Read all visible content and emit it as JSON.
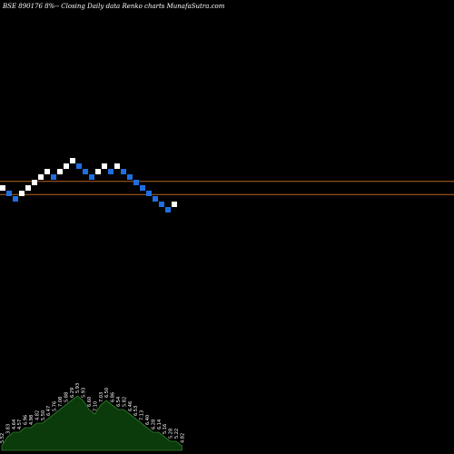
{
  "chart_data": {
    "type": "renko",
    "title": "BSE 890176  8%--  Closing Daily data  Renko  charts MunafaSutra.com",
    "colors": {
      "background": "#000000",
      "brick_up": "#ffffff",
      "brick_down": "#1e6fe0",
      "level_line": "#b8651c",
      "volume_fill": "#0b3a0b",
      "volume_outline": "#2e7d2e"
    },
    "bricks": [
      {
        "level": 0,
        "dir": "up"
      },
      {
        "level": -1,
        "dir": "down"
      },
      {
        "level": -2,
        "dir": "down"
      },
      {
        "level": -1,
        "dir": "up"
      },
      {
        "level": 0,
        "dir": "up"
      },
      {
        "level": 1,
        "dir": "up"
      },
      {
        "level": 2,
        "dir": "up"
      },
      {
        "level": 3,
        "dir": "up"
      },
      {
        "level": 2,
        "dir": "down"
      },
      {
        "level": 3,
        "dir": "up"
      },
      {
        "level": 4,
        "dir": "up"
      },
      {
        "level": 5,
        "dir": "up"
      },
      {
        "level": 4,
        "dir": "down"
      },
      {
        "level": 3,
        "dir": "down"
      },
      {
        "level": 2,
        "dir": "down"
      },
      {
        "level": 3,
        "dir": "up"
      },
      {
        "level": 4,
        "dir": "up"
      },
      {
        "level": 3,
        "dir": "down"
      },
      {
        "level": 4,
        "dir": "up"
      },
      {
        "level": 3,
        "dir": "down"
      },
      {
        "level": 2,
        "dir": "down"
      },
      {
        "level": 1,
        "dir": "down"
      },
      {
        "level": 0,
        "dir": "down"
      },
      {
        "level": -1,
        "dir": "down"
      },
      {
        "level": -2,
        "dir": "down"
      },
      {
        "level": -3,
        "dir": "down"
      },
      {
        "level": -4,
        "dir": "down"
      },
      {
        "level": -3,
        "dir": "up"
      }
    ],
    "level_lines": [
      1.2,
      -1.2
    ],
    "volume": {
      "values": [
        1,
        3,
        4,
        4,
        5,
        5,
        6,
        6,
        7,
        8,
        9,
        10,
        11,
        12,
        11,
        9,
        8,
        10,
        11,
        10,
        9,
        9,
        8,
        7,
        6,
        5,
        4,
        4,
        3,
        2,
        2,
        1
      ],
      "labels": [
        "5.52",
        "3.83",
        "4.64",
        "4.57",
        "6.96",
        "4.98",
        "4.82",
        "5.50",
        "6.47",
        "5.76",
        "7.08",
        "5.88",
        "6.29",
        "5.93",
        "5.93",
        "6.60",
        "7.10",
        "7.03",
        "6.50",
        "6.86",
        "6.54",
        "5.82",
        "6.46",
        "6.53",
        "7.13",
        "6.40",
        "6.28",
        "6.14",
        "5.16",
        "5.28",
        "5.22",
        "4.82"
      ]
    }
  }
}
